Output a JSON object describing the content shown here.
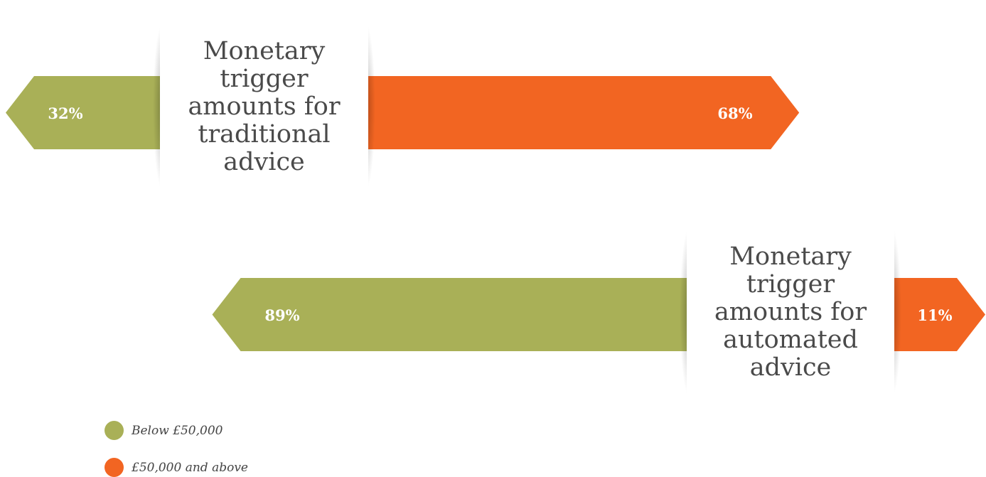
{
  "colors": {
    "below": "#a9b057",
    "above": "#f26522"
  },
  "chart_data": [
    {
      "type": "bar",
      "title": "Monetary trigger amounts for traditional advice",
      "categories": [
        "Below £50,000",
        "£50,000 and above"
      ],
      "values": [
        32,
        68
      ],
      "labels": [
        "32%",
        "68%"
      ],
      "unit": "%"
    },
    {
      "type": "bar",
      "title": "Monetary trigger amounts for automated advice",
      "categories": [
        "Below £50,000",
        "£50,000 and above"
      ],
      "values": [
        89,
        11
      ],
      "labels": [
        "89%",
        "11%"
      ],
      "unit": "%"
    }
  ],
  "legend": [
    {
      "label": "Below £50,000",
      "color": "#a9b057"
    },
    {
      "label": "£50,000 and above",
      "color": "#f26522"
    }
  ],
  "cards": {
    "traditional": [
      "Monetary",
      "trigger",
      "amounts for",
      "traditional",
      "advice"
    ],
    "automated": [
      "Monetary",
      "trigger",
      "amounts for",
      "automated",
      "advice"
    ]
  }
}
